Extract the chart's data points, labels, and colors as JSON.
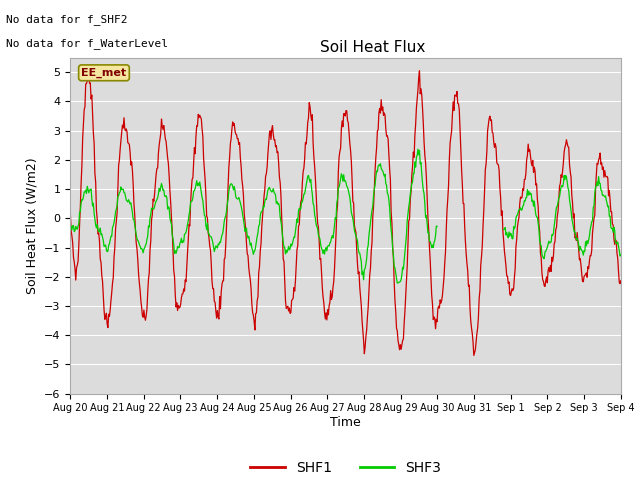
{
  "title": "Soil Heat Flux",
  "ylabel": "Soil Heat Flux (W/m2)",
  "xlabel": "Time",
  "ylim": [
    -6.0,
    5.5
  ],
  "yticks": [
    -6.0,
    -5.0,
    -4.0,
    -3.0,
    -2.0,
    -1.0,
    0.0,
    1.0,
    2.0,
    3.0,
    4.0,
    5.0
  ],
  "bg_color": "#dcdcdc",
  "annotations": [
    "No data for f_SHF2",
    "No data for f_WaterLevel"
  ],
  "legend_label": "EE_met",
  "shf1_color": "#cc0000",
  "shf3_color": "#00cc00",
  "x_tick_labels": [
    "Aug 20",
    "Aug 21",
    "Aug 22",
    "Aug 23",
    "Aug 24",
    "Aug 25",
    "Aug 26",
    "Aug 27",
    "Aug 28",
    "Aug 29",
    "Aug 30",
    "Aug 31",
    "Sep 1",
    "Sep 2",
    "Sep 3",
    "Sep 4"
  ]
}
